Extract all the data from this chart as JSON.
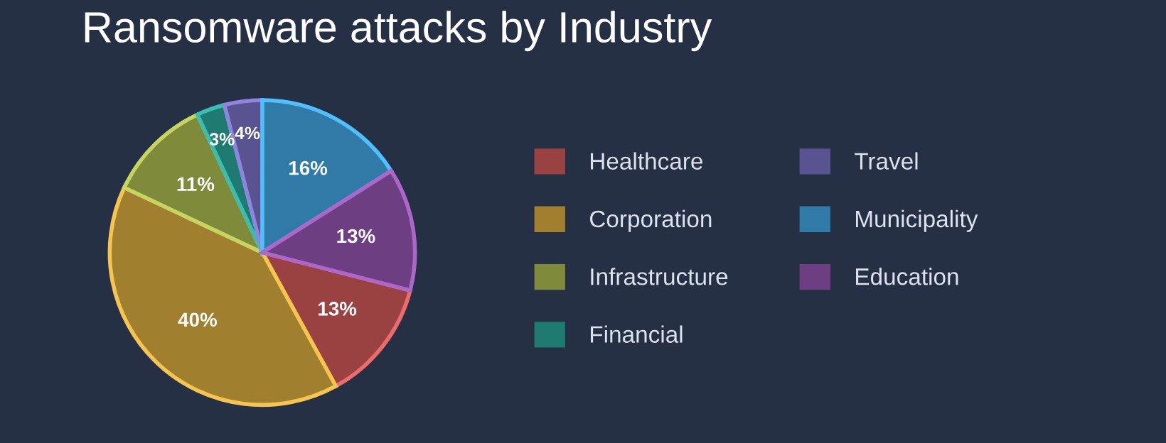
{
  "chart_data": {
    "type": "pie",
    "title": "Ransomware attacks by Industry",
    "categories": [
      "Healthcare",
      "Corporation",
      "Infrastructure",
      "Financial",
      "Travel",
      "Municipality",
      "Education"
    ],
    "values": [
      13,
      40,
      11,
      3,
      4,
      16,
      13
    ],
    "colors": [
      "#9a4242",
      "#a07f2e",
      "#7f8a3a",
      "#1f7a72",
      "#5a5391",
      "#2f7aa6",
      "#6d3f82"
    ],
    "value_labels": [
      "13%",
      "40%",
      "11%",
      "3%",
      "4%",
      "16%",
      "13%"
    ],
    "legend": "right"
  }
}
